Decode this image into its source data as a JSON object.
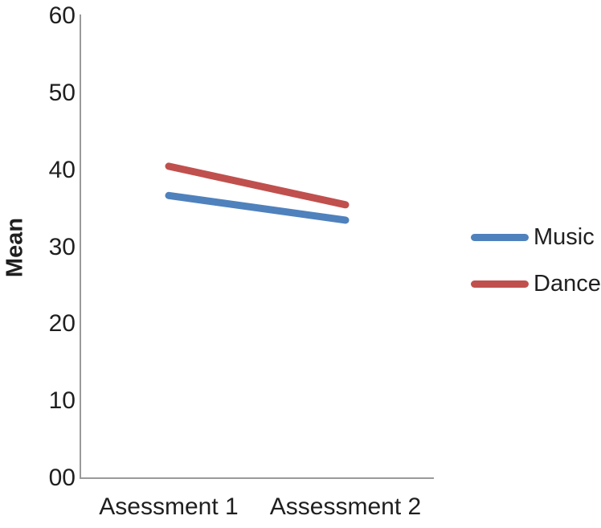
{
  "chart_data": {
    "type": "line",
    "title": "",
    "xlabel": "",
    "ylabel": "Mean",
    "categories": [
      "Asessment 1",
      "Assessment 2"
    ],
    "series": [
      {
        "name": "Music",
        "color": "#4F81BD",
        "values": [
          36.7,
          33.5
        ]
      },
      {
        "name": "Dance",
        "color": "#C0504D",
        "values": [
          40.5,
          35.5
        ]
      }
    ],
    "ylim": [
      0,
      60
    ],
    "ytick_values": [
      0,
      10,
      20,
      30,
      40,
      50,
      60
    ],
    "ytick_labels": [
      "00",
      "10",
      "20",
      "30",
      "40",
      "50",
      "60"
    ],
    "grid": false,
    "legend_position": "right",
    "axis_color": "#9a9a9a",
    "text_color": "#1f1f1f",
    "line_width": 9
  }
}
